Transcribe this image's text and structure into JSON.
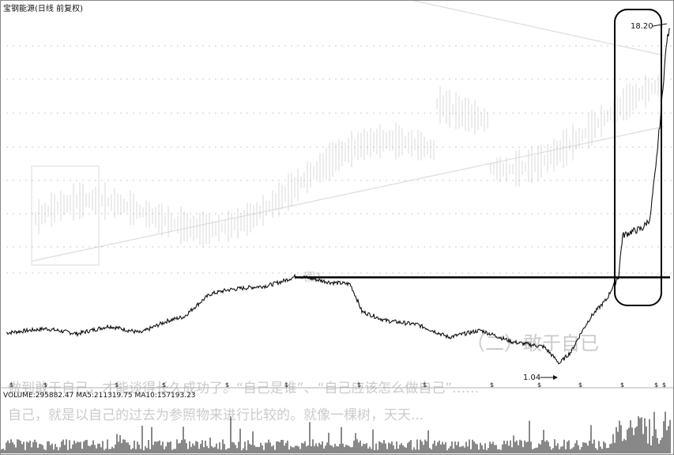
{
  "title": "宝钢能源(日线 前复权)",
  "background_image_text": {
    "figure_label": "图1",
    "heading": "（二）敢于自已",
    "para_1": "做到敢于自己，才能谈得长久成功了。“自己是谁”、“自己应该怎么做自己”……",
    "para_2": "自己，就是以自己的过去为参照物来进行比较的。就像一棵树，天天..."
  },
  "volume_header": "VOLUME:295882.47  MA5:211319.75  MA10:157193.23",
  "chart_data": {
    "type": "line",
    "title": "宝钢能源(日线 前复权)",
    "price_series": {
      "x_index": [
        0,
        50,
        90,
        130,
        170,
        205,
        225,
        258,
        280,
        300,
        330,
        350,
        368,
        385,
        410,
        435,
        450,
        480,
        520,
        560,
        600,
        640,
        680,
        700,
        715,
        740,
        760,
        775,
        780,
        790,
        805,
        815,
        822,
        828,
        832,
        836,
        840
      ],
      "close": [
        1.35,
        1.4,
        1.34,
        1.43,
        1.35,
        1.5,
        1.55,
        1.88,
        1.95,
        1.98,
        2.02,
        2.1,
        2.2,
        2.15,
        2.08,
        2.05,
        1.62,
        1.5,
        1.45,
        1.3,
        1.38,
        1.25,
        1.2,
        1.04,
        1.15,
        1.55,
        1.8,
        2.2,
        3.1,
        3.2,
        3.3,
        3.6,
        5.5,
        8.5,
        12.0,
        16.5,
        18.2
      ]
    },
    "annotations": [
      {
        "text": "18.20",
        "x_index": 836,
        "value": 18.2
      },
      {
        "text": "1.04",
        "x_index": 700,
        "value": 1.04
      }
    ],
    "resistance_line": {
      "value": 2.2,
      "x_start": 365,
      "x_end": 840
    },
    "volume_series": {
      "volume": 295882.47,
      "ma5": 211319.75,
      "ma10": 157193.23
    },
    "colors": {
      "price": "#111111",
      "resistance": "#000000",
      "highlight": "#000000"
    },
    "grid": true
  }
}
